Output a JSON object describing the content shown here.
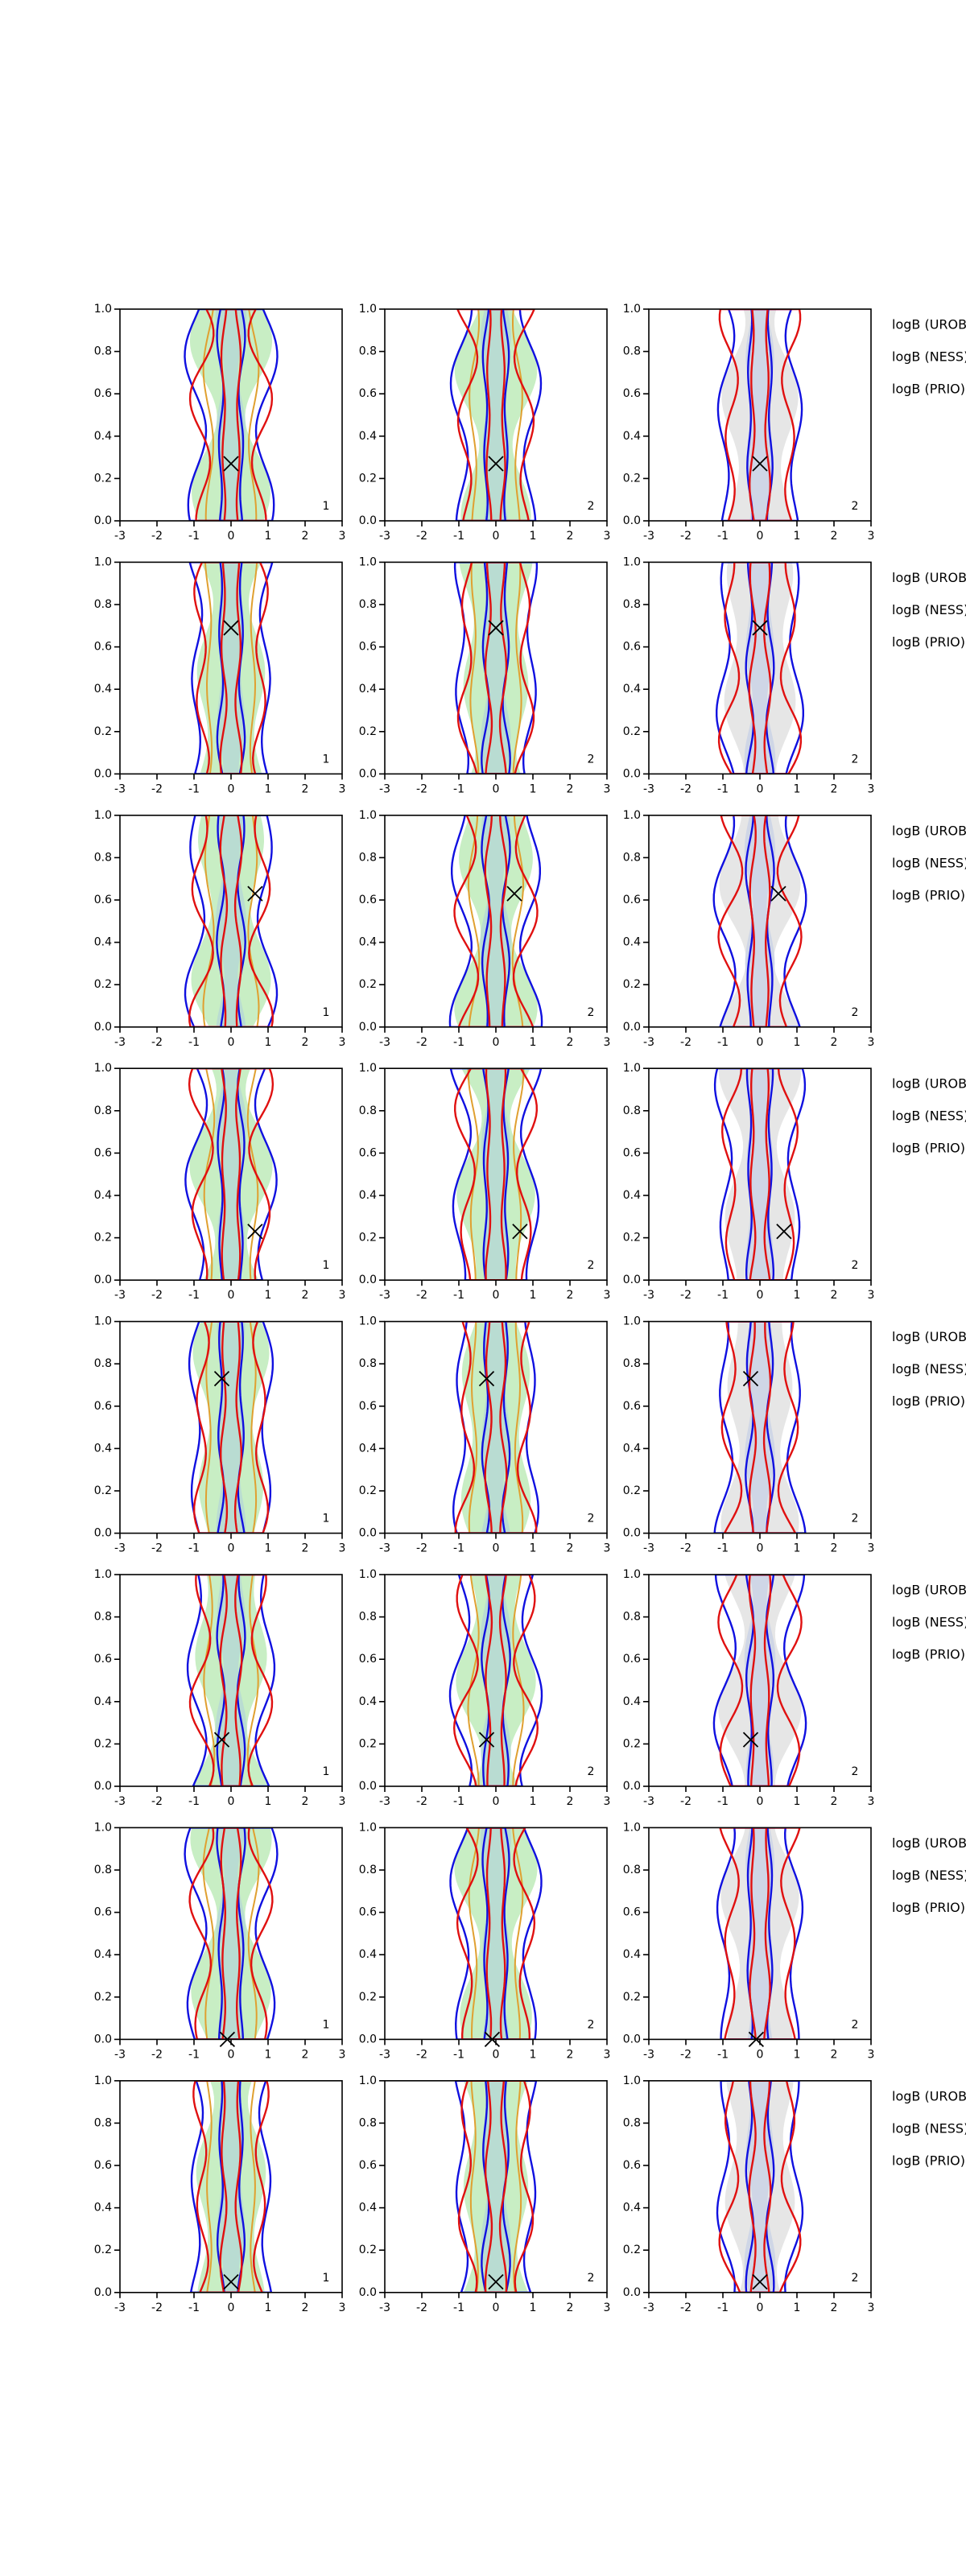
{
  "chart_data": [
    {
      "type": "scatter",
      "x": [
        0
      ],
      "values": [
        0.27
      ],
      "annotation": 1,
      "xlim": [
        -3,
        3
      ],
      "ylim": [
        0,
        1
      ],
      "xticks": [
        -3,
        -2,
        -1,
        0,
        1,
        2,
        3
      ],
      "yticks": [
        {
          "value": 0,
          "label": "0.0"
        },
        {
          "value": 0.2,
          "label": "0.2"
        },
        {
          "value": 0.4,
          "label": "0.4"
        },
        {
          "value": 0.6,
          "label": "0.6"
        },
        {
          "value": 0.8,
          "label": "0.8"
        },
        {
          "value": 1,
          "label": "1.0"
        }
      ]
    },
    {
      "type": "scatter",
      "x": [
        0
      ],
      "values": [
        0.27
      ],
      "annotation": 2,
      "xlim": [
        -3,
        3
      ],
      "ylim": [
        0,
        1
      ],
      "xticks": [
        -3,
        -2,
        -1,
        0,
        1,
        2,
        3
      ],
      "yticks": [
        {
          "value": 0,
          "label": "0.0"
        },
        {
          "value": 0.2,
          "label": "0.2"
        },
        {
          "value": 0.4,
          "label": "0.4"
        },
        {
          "value": 0.6,
          "label": "0.6"
        },
        {
          "value": 0.8,
          "label": "0.8"
        },
        {
          "value": 1,
          "label": "1.0"
        }
      ]
    },
    {
      "type": "scatter",
      "x": [
        0
      ],
      "values": [
        0.27
      ],
      "annotation": 2,
      "xlim": [
        -3,
        3
      ],
      "ylim": [
        0,
        1
      ],
      "xticks": [
        -3,
        -2,
        -1,
        0,
        1,
        2,
        3
      ],
      "yticks": [
        {
          "value": 0,
          "label": "0.0"
        },
        {
          "value": 0.2,
          "label": "0.2"
        },
        {
          "value": 0.4,
          "label": "0.4"
        },
        {
          "value": 0.6,
          "label": "0.6"
        },
        {
          "value": 0.8,
          "label": "0.8"
        },
        {
          "value": 1,
          "label": "1.0"
        }
      ]
    },
    {
      "type": "scatter",
      "x": [
        0
      ],
      "values": [
        0.69
      ],
      "annotation": 1,
      "xlim": [
        -3,
        3
      ],
      "ylim": [
        0,
        1
      ],
      "xticks": [
        -3,
        -2,
        -1,
        0,
        1,
        2,
        3
      ],
      "yticks": [
        {
          "value": 0,
          "label": "0.0"
        },
        {
          "value": 0.2,
          "label": "0.2"
        },
        {
          "value": 0.4,
          "label": "0.4"
        },
        {
          "value": 0.6,
          "label": "0.6"
        },
        {
          "value": 0.8,
          "label": "0.8"
        },
        {
          "value": 1,
          "label": "1.0"
        }
      ]
    },
    {
      "type": "scatter",
      "x": [
        0
      ],
      "values": [
        0.69
      ],
      "annotation": 2,
      "xlim": [
        -3,
        3
      ],
      "ylim": [
        0,
        1
      ],
      "xticks": [
        -3,
        -2,
        -1,
        0,
        1,
        2,
        3
      ],
      "yticks": [
        {
          "value": 0,
          "label": "0.0"
        },
        {
          "value": 0.2,
          "label": "0.2"
        },
        {
          "value": 0.4,
          "label": "0.4"
        },
        {
          "value": 0.6,
          "label": "0.6"
        },
        {
          "value": 0.8,
          "label": "0.8"
        },
        {
          "value": 1,
          "label": "1.0"
        }
      ]
    },
    {
      "type": "scatter",
      "x": [
        0
      ],
      "values": [
        0.69
      ],
      "annotation": 2,
      "xlim": [
        -3,
        3
      ],
      "ylim": [
        0,
        1
      ],
      "xticks": [
        -3,
        -2,
        -1,
        0,
        1,
        2,
        3
      ],
      "yticks": [
        {
          "value": 0,
          "label": "0.0"
        },
        {
          "value": 0.2,
          "label": "0.2"
        },
        {
          "value": 0.4,
          "label": "0.4"
        },
        {
          "value": 0.6,
          "label": "0.6"
        },
        {
          "value": 0.8,
          "label": "0.8"
        },
        {
          "value": 1,
          "label": "1.0"
        }
      ]
    },
    {
      "type": "scatter",
      "x": [
        0.65
      ],
      "values": [
        0.63
      ],
      "annotation": 1,
      "xlim": [
        -3,
        3
      ],
      "ylim": [
        0,
        1
      ],
      "xticks": [
        -3,
        -2,
        -1,
        0,
        1,
        2,
        3
      ],
      "yticks": [
        {
          "value": 0,
          "label": "0.0"
        },
        {
          "value": 0.2,
          "label": "0.2"
        },
        {
          "value": 0.4,
          "label": "0.4"
        },
        {
          "value": 0.6,
          "label": "0.6"
        },
        {
          "value": 0.8,
          "label": "0.8"
        },
        {
          "value": 1,
          "label": "1.0"
        }
      ]
    },
    {
      "type": "scatter",
      "x": [
        0.5
      ],
      "values": [
        0.63
      ],
      "annotation": 2,
      "xlim": [
        -3,
        3
      ],
      "ylim": [
        0,
        1
      ],
      "xticks": [
        -3,
        -2,
        -1,
        0,
        1,
        2,
        3
      ],
      "yticks": [
        {
          "value": 0,
          "label": "0.0"
        },
        {
          "value": 0.2,
          "label": "0.2"
        },
        {
          "value": 0.4,
          "label": "0.4"
        },
        {
          "value": 0.6,
          "label": "0.6"
        },
        {
          "value": 0.8,
          "label": "0.8"
        },
        {
          "value": 1,
          "label": "1.0"
        }
      ]
    },
    {
      "type": "scatter",
      "x": [
        0.5
      ],
      "values": [
        0.63
      ],
      "annotation": 2,
      "xlim": [
        -3,
        3
      ],
      "ylim": [
        0,
        1
      ],
      "xticks": [
        -3,
        -2,
        -1,
        0,
        1,
        2,
        3
      ],
      "yticks": [
        {
          "value": 0,
          "label": "0.0"
        },
        {
          "value": 0.2,
          "label": "0.2"
        },
        {
          "value": 0.4,
          "label": "0.4"
        },
        {
          "value": 0.6,
          "label": "0.6"
        },
        {
          "value": 0.8,
          "label": "0.8"
        },
        {
          "value": 1,
          "label": "1.0"
        }
      ]
    },
    {
      "type": "scatter",
      "x": [
        0.65
      ],
      "values": [
        0.23
      ],
      "annotation": 1,
      "xlim": [
        -3,
        3
      ],
      "ylim": [
        0,
        1
      ],
      "xticks": [
        -3,
        -2,
        -1,
        0,
        1,
        2,
        3
      ],
      "yticks": [
        {
          "value": 0,
          "label": "0.0"
        },
        {
          "value": 0.2,
          "label": "0.2"
        },
        {
          "value": 0.4,
          "label": "0.4"
        },
        {
          "value": 0.6,
          "label": "0.6"
        },
        {
          "value": 0.8,
          "label": "0.8"
        },
        {
          "value": 1,
          "label": "1.0"
        }
      ]
    },
    {
      "type": "scatter",
      "x": [
        0.65
      ],
      "values": [
        0.23
      ],
      "annotation": 2,
      "xlim": [
        -3,
        3
      ],
      "ylim": [
        0,
        1
      ],
      "xticks": [
        -3,
        -2,
        -1,
        0,
        1,
        2,
        3
      ],
      "yticks": [
        {
          "value": 0,
          "label": "0.0"
        },
        {
          "value": 0.2,
          "label": "0.2"
        },
        {
          "value": 0.4,
          "label": "0.4"
        },
        {
          "value": 0.6,
          "label": "0.6"
        },
        {
          "value": 0.8,
          "label": "0.8"
        },
        {
          "value": 1,
          "label": "1.0"
        }
      ]
    },
    {
      "type": "scatter",
      "x": [
        0.65
      ],
      "values": [
        0.23
      ],
      "annotation": 2,
      "xlim": [
        -3,
        3
      ],
      "ylim": [
        0,
        1
      ],
      "xticks": [
        -3,
        -2,
        -1,
        0,
        1,
        2,
        3
      ],
      "yticks": [
        {
          "value": 0,
          "label": "0.0"
        },
        {
          "value": 0.2,
          "label": "0.2"
        },
        {
          "value": 0.4,
          "label": "0.4"
        },
        {
          "value": 0.6,
          "label": "0.6"
        },
        {
          "value": 0.8,
          "label": "0.8"
        },
        {
          "value": 1,
          "label": "1.0"
        }
      ]
    },
    {
      "type": "scatter",
      "x": [
        -0.25
      ],
      "values": [
        0.73
      ],
      "annotation": 1,
      "xlim": [
        -3,
        3
      ],
      "ylim": [
        0,
        1
      ],
      "xticks": [
        -3,
        -2,
        -1,
        0,
        1,
        2,
        3
      ],
      "yticks": [
        {
          "value": 0,
          "label": "0.0"
        },
        {
          "value": 0.2,
          "label": "0.2"
        },
        {
          "value": 0.4,
          "label": "0.4"
        },
        {
          "value": 0.6,
          "label": "0.6"
        },
        {
          "value": 0.8,
          "label": "0.8"
        },
        {
          "value": 1,
          "label": "1.0"
        }
      ]
    },
    {
      "type": "scatter",
      "x": [
        -0.25
      ],
      "values": [
        0.73
      ],
      "annotation": 2,
      "xlim": [
        -3,
        3
      ],
      "ylim": [
        0,
        1
      ],
      "xticks": [
        -3,
        -2,
        -1,
        0,
        1,
        2,
        3
      ],
      "yticks": [
        {
          "value": 0,
          "label": "0.0"
        },
        {
          "value": 0.2,
          "label": "0.2"
        },
        {
          "value": 0.4,
          "label": "0.4"
        },
        {
          "value": 0.6,
          "label": "0.6"
        },
        {
          "value": 0.8,
          "label": "0.8"
        },
        {
          "value": 1,
          "label": "1.0"
        }
      ]
    },
    {
      "type": "scatter",
      "x": [
        -0.25
      ],
      "values": [
        0.73
      ],
      "annotation": 2,
      "xlim": [
        -3,
        3
      ],
      "ylim": [
        0,
        1
      ],
      "xticks": [
        -3,
        -2,
        -1,
        0,
        1,
        2,
        3
      ],
      "yticks": [
        {
          "value": 0,
          "label": "0.0"
        },
        {
          "value": 0.2,
          "label": "0.2"
        },
        {
          "value": 0.4,
          "label": "0.4"
        },
        {
          "value": 0.6,
          "label": "0.6"
        },
        {
          "value": 0.8,
          "label": "0.8"
        },
        {
          "value": 1,
          "label": "1.0"
        }
      ]
    },
    {
      "type": "scatter",
      "x": [
        -0.25
      ],
      "values": [
        0.22
      ],
      "annotation": 1,
      "xlim": [
        -3,
        3
      ],
      "ylim": [
        0,
        1
      ],
      "xticks": [
        -3,
        -2,
        -1,
        0,
        1,
        2,
        3
      ],
      "yticks": [
        {
          "value": 0,
          "label": "0.0"
        },
        {
          "value": 0.2,
          "label": "0.2"
        },
        {
          "value": 0.4,
          "label": "0.4"
        },
        {
          "value": 0.6,
          "label": "0.6"
        },
        {
          "value": 0.8,
          "label": "0.8"
        },
        {
          "value": 1,
          "label": "1.0"
        }
      ]
    },
    {
      "type": "scatter",
      "x": [
        -0.25
      ],
      "values": [
        0.22
      ],
      "annotation": 2,
      "xlim": [
        -3,
        3
      ],
      "ylim": [
        0,
        1
      ],
      "xticks": [
        -3,
        -2,
        -1,
        0,
        1,
        2,
        3
      ],
      "yticks": [
        {
          "value": 0,
          "label": "0.0"
        },
        {
          "value": 0.2,
          "label": "0.2"
        },
        {
          "value": 0.4,
          "label": "0.4"
        },
        {
          "value": 0.6,
          "label": "0.6"
        },
        {
          "value": 0.8,
          "label": "0.8"
        },
        {
          "value": 1,
          "label": "1.0"
        }
      ]
    },
    {
      "type": "scatter",
      "x": [
        -0.25
      ],
      "values": [
        0.22
      ],
      "annotation": 2,
      "xlim": [
        -3,
        3
      ],
      "ylim": [
        0,
        1
      ],
      "xticks": [
        -3,
        -2,
        -1,
        0,
        1,
        2,
        3
      ],
      "yticks": [
        {
          "value": 0,
          "label": "0.0"
        },
        {
          "value": 0.2,
          "label": "0.2"
        },
        {
          "value": 0.4,
          "label": "0.4"
        },
        {
          "value": 0.6,
          "label": "0.6"
        },
        {
          "value": 0.8,
          "label": "0.8"
        },
        {
          "value": 1,
          "label": "1.0"
        }
      ]
    },
    {
      "type": "scatter",
      "x": [
        -0.1
      ],
      "values": [
        0
      ],
      "annotation": 1,
      "xlim": [
        -3,
        3
      ],
      "ylim": [
        0,
        1
      ],
      "xticks": [
        -3,
        -2,
        -1,
        0,
        1,
        2,
        3
      ],
      "yticks": [
        {
          "value": 0,
          "label": "0.0"
        },
        {
          "value": 0.2,
          "label": "0.2"
        },
        {
          "value": 0.4,
          "label": "0.4"
        },
        {
          "value": 0.6,
          "label": "0.6"
        },
        {
          "value": 0.8,
          "label": "0.8"
        },
        {
          "value": 1,
          "label": "1.0"
        }
      ]
    },
    {
      "type": "scatter",
      "x": [
        -0.1
      ],
      "values": [
        0
      ],
      "annotation": 2,
      "xlim": [
        -3,
        3
      ],
      "ylim": [
        0,
        1
      ],
      "xticks": [
        -3,
        -2,
        -1,
        0,
        1,
        2,
        3
      ],
      "yticks": [
        {
          "value": 0,
          "label": "0.0"
        },
        {
          "value": 0.2,
          "label": "0.2"
        },
        {
          "value": 0.4,
          "label": "0.4"
        },
        {
          "value": 0.6,
          "label": "0.6"
        },
        {
          "value": 0.8,
          "label": "0.8"
        },
        {
          "value": 1,
          "label": "1.0"
        }
      ]
    },
    {
      "type": "scatter",
      "x": [
        -0.1
      ],
      "values": [
        0
      ],
      "annotation": 2,
      "xlim": [
        -3,
        3
      ],
      "ylim": [
        0,
        1
      ],
      "xticks": [
        -3,
        -2,
        -1,
        0,
        1,
        2,
        3
      ],
      "yticks": [
        {
          "value": 0,
          "label": "0.0"
        },
        {
          "value": 0.2,
          "label": "0.2"
        },
        {
          "value": 0.4,
          "label": "0.4"
        },
        {
          "value": 0.6,
          "label": "0.6"
        },
        {
          "value": 0.8,
          "label": "0.8"
        },
        {
          "value": 1,
          "label": "1.0"
        }
      ]
    },
    {
      "type": "scatter",
      "x": [
        0
      ],
      "values": [
        0.05
      ],
      "annotation": 1,
      "xlim": [
        -3,
        3
      ],
      "ylim": [
        0,
        1
      ],
      "xticks": [
        -3,
        -2,
        -1,
        0,
        1,
        2,
        3
      ],
      "yticks": [
        {
          "value": 0,
          "label": "0.0"
        },
        {
          "value": 0.2,
          "label": "0.2"
        },
        {
          "value": 0.4,
          "label": "0.4"
        },
        {
          "value": 0.6,
          "label": "0.6"
        },
        {
          "value": 0.8,
          "label": "0.8"
        },
        {
          "value": 1,
          "label": "1.0"
        }
      ]
    },
    {
      "type": "scatter",
      "x": [
        0
      ],
      "values": [
        0.05
      ],
      "annotation": 2,
      "xlim": [
        -3,
        3
      ],
      "ylim": [
        0,
        1
      ],
      "xticks": [
        -3,
        -2,
        -1,
        0,
        1,
        2,
        3
      ],
      "yticks": [
        {
          "value": 0,
          "label": "0.0"
        },
        {
          "value": 0.2,
          "label": "0.2"
        },
        {
          "value": 0.4,
          "label": "0.4"
        },
        {
          "value": 0.6,
          "label": "0.6"
        },
        {
          "value": 0.8,
          "label": "0.8"
        },
        {
          "value": 1,
          "label": "1.0"
        }
      ]
    },
    {
      "type": "scatter",
      "x": [
        0
      ],
      "values": [
        0.05
      ],
      "annotation": 2,
      "xlim": [
        -3,
        3
      ],
      "ylim": [
        0,
        1
      ],
      "xticks": [
        -3,
        -2,
        -1,
        0,
        1,
        2,
        3
      ],
      "yticks": [
        {
          "value": 0,
          "label": "0.0"
        },
        {
          "value": 0.2,
          "label": "0.2"
        },
        {
          "value": 0.4,
          "label": "0.4"
        },
        {
          "value": 0.6,
          "label": "0.6"
        },
        {
          "value": 0.8,
          "label": "0.8"
        },
        {
          "value": 1,
          "label": "1.0"
        }
      ]
    }
  ],
  "side_labels": [
    [
      "logB (UROB) =",
      "logB (NESS) =",
      "logB (PRIO) ="
    ],
    [
      "logB (UROB) =",
      "logB (NESS) =",
      "logB (PRIO) ="
    ],
    [
      "logB (UROB) =",
      "logB (NESS) =",
      "logB (PRIO) ="
    ],
    [
      "logB (UROB) =",
      "logB (NESS) =",
      "logB (PRIO) ="
    ],
    [
      "logB (UROB) =",
      "logB (NESS) =",
      "logB (PRIO) ="
    ],
    [
      "logB (UROB) =",
      "logB (NESS) =",
      "logB (PRIO) ="
    ],
    [
      "logB (UROB) =",
      "logB (NESS) =",
      "logB (PRIO) ="
    ],
    [
      "logB (UROB) =",
      "logB (NESS) =",
      "logB (PRIO) ="
    ]
  ]
}
